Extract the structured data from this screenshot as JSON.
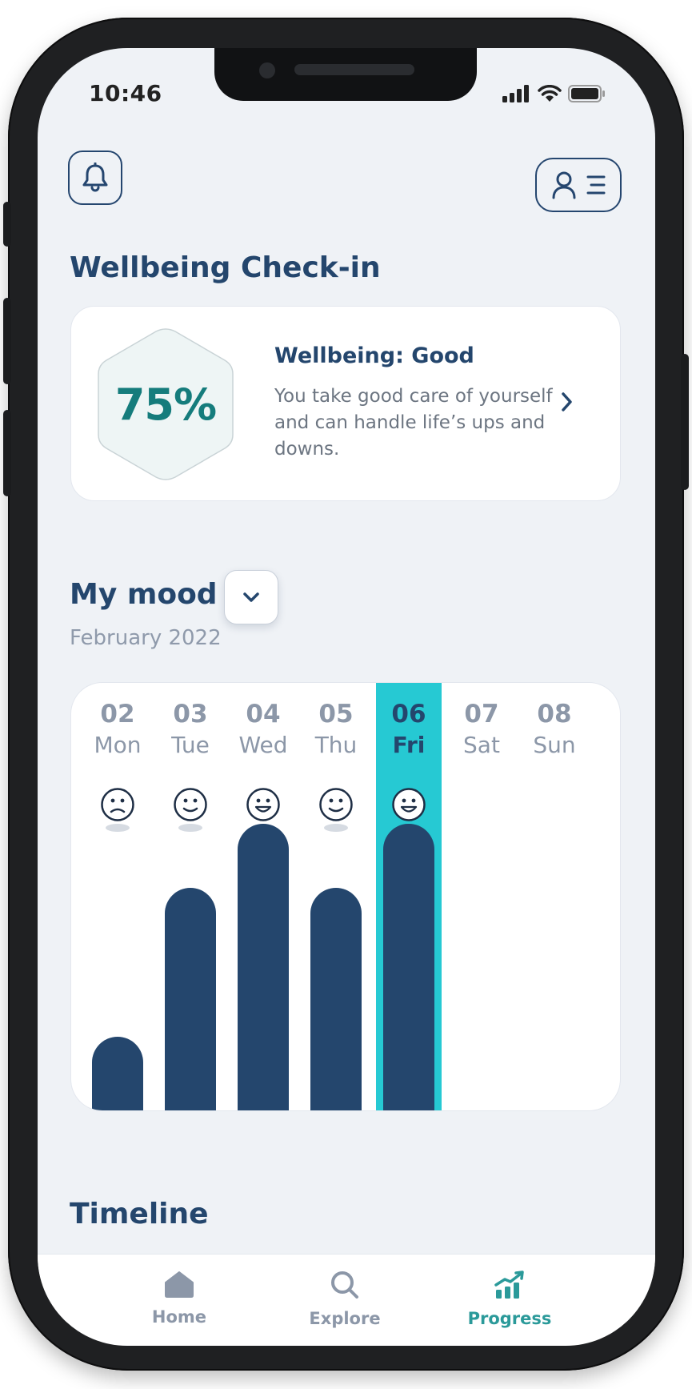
{
  "status": {
    "time": "10:46"
  },
  "page": {
    "title": "Wellbeing Check-in"
  },
  "wellbeing": {
    "score": "75%",
    "title": "Wellbeing: Good",
    "description": "You take good care of yourself and can handle life’s ups and downs."
  },
  "mood": {
    "title": "My mood",
    "month": "February 2022",
    "selected_day": 4,
    "days": [
      {
        "num": "02",
        "name": "Mon",
        "mood": "sad",
        "value": 3
      },
      {
        "num": "03",
        "name": "Tue",
        "mood": "happy",
        "value": 7
      },
      {
        "num": "04",
        "name": "Wed",
        "mood": "very-happy",
        "value": 9
      },
      {
        "num": "05",
        "name": "Thu",
        "mood": "happy",
        "value": 7
      },
      {
        "num": "06",
        "name": "Fri",
        "mood": "very-happy",
        "value": 9
      },
      {
        "num": "07",
        "name": "Sat",
        "mood": null,
        "value": null
      },
      {
        "num": "08",
        "name": "Sun",
        "mood": null,
        "value": null
      }
    ]
  },
  "timeline": {
    "title": "Timeline"
  },
  "nav": {
    "items": [
      {
        "label": "Home",
        "icon": "home-icon",
        "active": false
      },
      {
        "label": "Explore",
        "icon": "search-icon",
        "active": false
      },
      {
        "label": "Progress",
        "icon": "chart-icon",
        "active": true
      }
    ]
  },
  "colors": {
    "navy": "#24466d",
    "teal_highlight": "#26c9d3",
    "teal_text": "#157c7c",
    "muted": "#8c97a8",
    "background": "#eff2f6"
  }
}
